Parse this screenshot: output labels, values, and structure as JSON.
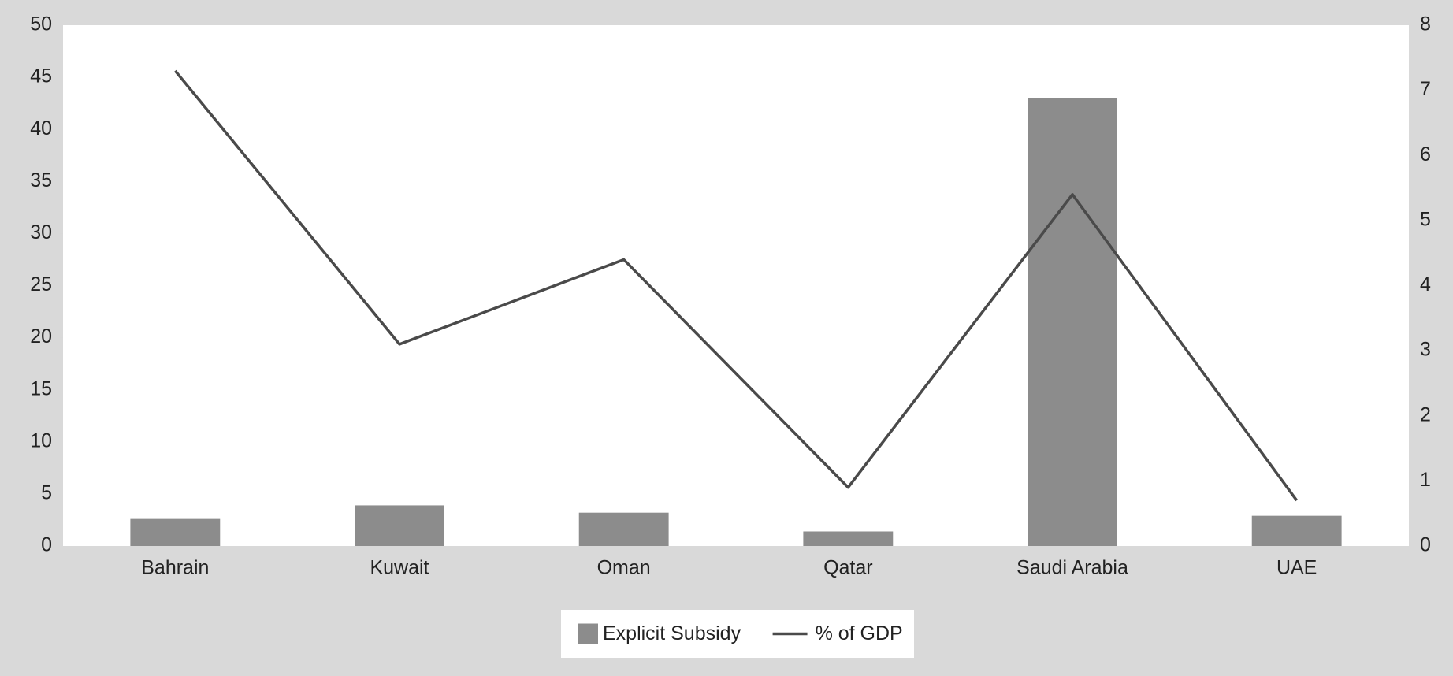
{
  "chart_data": {
    "type": "bar",
    "categories": [
      "Bahrain",
      "Kuwait",
      "Oman",
      "Qatar",
      "Saudi Arabia",
      "UAE"
    ],
    "series": [
      {
        "name": "Explicit Subsidy",
        "type": "bar",
        "color": "#8c8c8c",
        "values": [
          2.6,
          3.9,
          3.2,
          1.4,
          43.0,
          2.9
        ]
      },
      {
        "name": "% of GDP",
        "type": "line",
        "axis": "y2",
        "color": "#4a4a4a",
        "values": [
          7.3,
          3.1,
          4.4,
          0.9,
          5.4,
          0.7
        ]
      }
    ],
    "ylim": [
      0,
      50
    ],
    "yticks": [
      0,
      5,
      10,
      15,
      20,
      25,
      30,
      35,
      40,
      45,
      50
    ],
    "y2lim": [
      0,
      8
    ],
    "y2ticks": [
      0,
      1,
      2,
      3,
      4,
      5,
      6,
      7,
      8
    ],
    "legend": "bottom",
    "grid": false
  }
}
